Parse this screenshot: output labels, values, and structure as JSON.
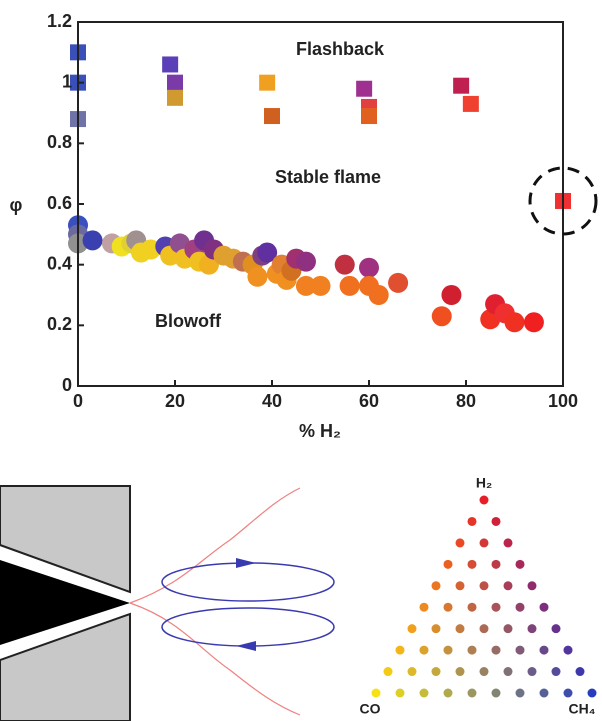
{
  "chart_data": {
    "type": "scatter",
    "xlabel": "% H₂",
    "ylabel": "φ",
    "xlim": [
      0,
      100
    ],
    "ylim": [
      0,
      1.2
    ],
    "xticks": [
      0,
      20,
      40,
      60,
      80,
      100
    ],
    "yticks": [
      0,
      0.2,
      0.4,
      0.6,
      0.8,
      1,
      1.2
    ],
    "annotations": [
      "Flashback",
      "Stable flame",
      "Blowoff"
    ],
    "series": [
      {
        "marker": "square",
        "x": [
          0,
          0,
          0,
          19,
          20,
          20,
          39,
          40,
          59,
          60,
          60,
          79,
          81,
          100
        ],
        "values": [
          1.1,
          1.0,
          0.88,
          1.06,
          1.0,
          0.95,
          1.0,
          0.89,
          0.98,
          0.92,
          0.89,
          0.99,
          0.93,
          0.61
        ],
        "colors": [
          "#3a4fb8",
          "#3a4fb8",
          "#6f73a8",
          "#5a3fb8",
          "#7a3aa8",
          "#d09a30",
          "#f0a020",
          "#d06020",
          "#a03090",
          "#e04040",
          "#e06020",
          "#c02050",
          "#f04030",
          "#f03030"
        ]
      },
      {
        "marker": "circle",
        "x": [
          0,
          0,
          0,
          3,
          7,
          9,
          11,
          12,
          13,
          15,
          18,
          19,
          21,
          22,
          24,
          25,
          26,
          27,
          28,
          30,
          32,
          34,
          36,
          37,
          38,
          39,
          41,
          42,
          43,
          44,
          45,
          47,
          47,
          50,
          55,
          56,
          60,
          60,
          62,
          66,
          75,
          77,
          85,
          86,
          88,
          90,
          94
        ],
        "values": [
          0.53,
          0.5,
          0.47,
          0.48,
          0.47,
          0.46,
          0.47,
          0.48,
          0.44,
          0.45,
          0.46,
          0.43,
          0.47,
          0.42,
          0.45,
          0.41,
          0.48,
          0.4,
          0.45,
          0.43,
          0.42,
          0.41,
          0.4,
          0.36,
          0.43,
          0.44,
          0.37,
          0.4,
          0.35,
          0.38,
          0.42,
          0.41,
          0.33,
          0.33,
          0.4,
          0.33,
          0.39,
          0.33,
          0.3,
          0.34,
          0.23,
          0.3,
          0.22,
          0.27,
          0.24,
          0.21,
          0.21
        ],
        "colors": [
          "#3a50c0",
          "#6a6aa0",
          "#909090",
          "#3a40b0",
          "#c0a0a0",
          "#f0e020",
          "#e0d030",
          "#a09090",
          "#f0d020",
          "#f0d020",
          "#5040b0",
          "#f0c020",
          "#905090",
          "#f0c020",
          "#a04080",
          "#f0c020",
          "#703090",
          "#f0b020",
          "#803080",
          "#e0a030",
          "#e0a030",
          "#c07050",
          "#e09020",
          "#f09020",
          "#804080",
          "#6030a0",
          "#f09020",
          "#e08030",
          "#f09020",
          "#d07020",
          "#a03070",
          "#903080",
          "#f08020",
          "#f08020",
          "#c03040",
          "#f07020",
          "#a03080",
          "#f07020",
          "#f07020",
          "#e05030",
          "#f05020",
          "#d02030",
          "#f03020",
          "#e02030",
          "#f03030",
          "#f03020",
          "#f02020"
        ]
      }
    ]
  },
  "diagram": {
    "labels": [
      "H₂",
      "CO",
      "CH₄"
    ]
  }
}
